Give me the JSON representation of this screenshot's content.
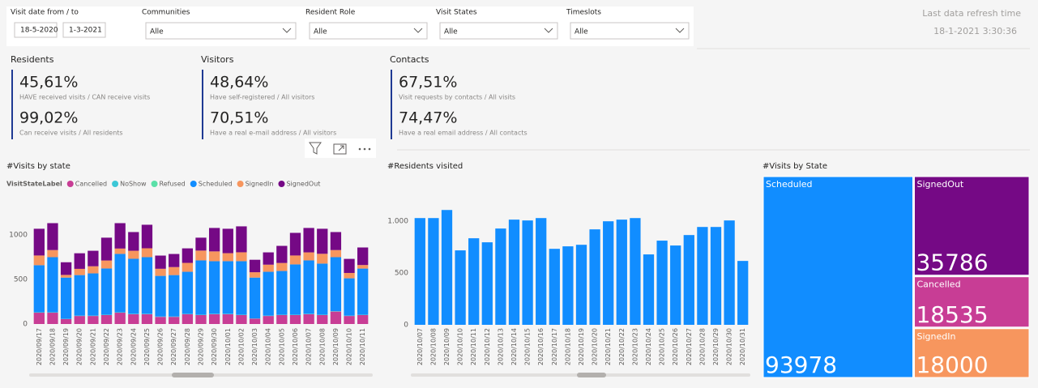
{
  "filters": [
    {
      "label": "Visit date from / to",
      "from": "18-5-2020",
      "to": "1-3-2021"
    },
    {
      "label": "Communities",
      "value": "Alle"
    },
    {
      "label": "Resident Role",
      "value": "Alle"
    },
    {
      "label": "Visit States",
      "value": "Alle"
    },
    {
      "label": "Timeslots",
      "value": "Alle"
    }
  ],
  "refresh": {
    "label": "Last data refresh time",
    "value": "18-1-2021 3:30:36"
  },
  "kpis": [
    {
      "title": "Residents",
      "items": [
        {
          "value": "45,61%",
          "caption": "HAVE received visits / CAN receive visits"
        },
        {
          "value": "99,02%",
          "caption": "Can receive visits / All residents"
        }
      ]
    },
    {
      "title": "Visitors",
      "items": [
        {
          "value": "48,64%",
          "caption": "Have self-registered / All visitors"
        },
        {
          "value": "70,51%",
          "caption": "Have a real e-mail address / All visitors"
        }
      ]
    },
    {
      "title": "Contacts",
      "items": [
        {
          "value": "67,51%",
          "caption": "Visit requests by contacts / All visits"
        },
        {
          "value": "74,47%",
          "caption": "Have a real email address / All contacts"
        }
      ]
    }
  ],
  "chart_data": [
    {
      "type": "stacked_bar",
      "title": "#Visits by state",
      "legend_title": "VisitStateLabel",
      "categories": [
        "2020/09/17",
        "2020/09/18",
        "2020/09/19",
        "2020/09/20",
        "2020/09/21",
        "2020/09/22",
        "2020/09/23",
        "2020/09/24",
        "2020/09/25",
        "2020/09/26",
        "2020/09/27",
        "2020/09/28",
        "2020/09/29",
        "2020/09/30",
        "2020/10/01",
        "2020/10/02",
        "2020/10/03",
        "2020/10/04",
        "2020/10/05",
        "2020/10/06",
        "2020/10/07",
        "2020/10/08",
        "2020/10/09",
        "2020/10/10",
        "2020/10/11"
      ],
      "series": [
        {
          "name": "Cancelled",
          "color": "#c83d95",
          "values": [
            127,
            127,
            55,
            90,
            90,
            100,
            127,
            110,
            110,
            80,
            80,
            110,
            100,
            110,
            110,
            100,
            60,
            90,
            100,
            100,
            110,
            100,
            140,
            90,
            100
          ]
        },
        {
          "name": "NoShow",
          "color": "#3cc7d6",
          "values": [
            4,
            4,
            2,
            3,
            3,
            4,
            4,
            4,
            4,
            3,
            3,
            3,
            4,
            4,
            4,
            4,
            2,
            3,
            3,
            4,
            4,
            4,
            4,
            3,
            3
          ]
        },
        {
          "name": "Refused",
          "color": "#5ae0a8",
          "values": [
            1,
            1,
            1,
            1,
            1,
            1,
            1,
            1,
            1,
            1,
            1,
            1,
            1,
            1,
            1,
            1,
            1,
            1,
            1,
            1,
            1,
            1,
            1,
            1,
            1
          ]
        },
        {
          "name": "Scheduled",
          "color": "#118dff",
          "values": [
            528,
            618,
            463,
            455,
            474,
            518,
            655,
            617,
            635,
            456,
            465,
            472,
            609,
            590,
            590,
            600,
            458,
            492,
            491,
            564,
            599,
            573,
            605,
            419,
            518
          ]
        },
        {
          "name": "SignedIn",
          "color": "#f7965e",
          "values": [
            109,
            80,
            30,
            70,
            80,
            90,
            60,
            90,
            100,
            80,
            90,
            100,
            110,
            110,
            90,
            100,
            60,
            80,
            90,
            100,
            90,
            110,
            80,
            60,
            40
          ]
        },
        {
          "name": "SignedOut",
          "color": "#750985",
          "values": [
            300,
            302,
            142,
            175,
            174,
            256,
            285,
            210,
            264,
            148,
            147,
            163,
            145,
            263,
            274,
            291,
            140,
            138,
            192,
            254,
            274,
            281,
            202,
            158,
            197
          ]
        }
      ],
      "ylim": [
        0,
        1300
      ],
      "yticks": [
        0,
        500,
        1000
      ]
    },
    {
      "type": "bar",
      "title": "#Residents visited",
      "color": "#118dff",
      "categories": [
        "2020/10/07",
        "2020/10/08",
        "2020/10/09",
        "2020/10/10",
        "2020/10/11",
        "2020/10/12",
        "2020/10/13",
        "2020/10/14",
        "2020/10/15",
        "2020/10/16",
        "2020/10/17",
        "2020/10/18",
        "2020/10/19",
        "2020/10/20",
        "2020/10/21",
        "2020/10/22",
        "2020/10/23",
        "2020/10/24",
        "2020/10/25",
        "2020/10/26",
        "2020/10/27",
        "2020/10/28",
        "2020/10/29",
        "2020/10/30",
        "2020/10/31"
      ],
      "values": [
        1031,
        1031,
        1109,
        719,
        836,
        797,
        930,
        1016,
        1008,
        1031,
        734,
        758,
        773,
        922,
        1000,
        1016,
        1031,
        680,
        813,
        766,
        867,
        945,
        945,
        1008,
        617
      ],
      "ylim": [
        0,
        1150
      ],
      "yticks": [
        0,
        500,
        {
          "value": 1000,
          "label": "1.000"
        }
      ]
    },
    {
      "type": "treemap",
      "title": "#Visits by State",
      "categories": [
        "Scheduled",
        "SignedOut",
        "Cancelled",
        "SignedIn"
      ],
      "values": [
        93978,
        35786,
        18535,
        18000
      ],
      "colors": [
        "#118dff",
        "#750985",
        "#c83d95",
        "#f7965e"
      ]
    }
  ]
}
